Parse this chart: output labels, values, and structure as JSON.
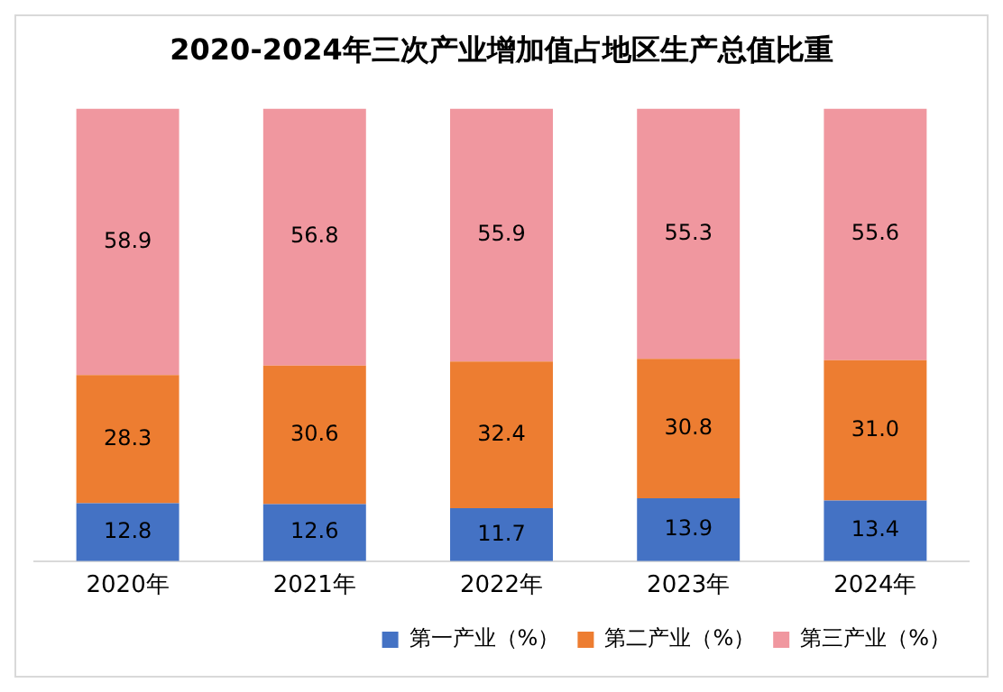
{
  "chart_data": {
    "type": "bar",
    "title": "2020-2024年三次产业增加值占地区生产总值比重",
    "categories": [
      "2020年",
      "2021年",
      "2022年",
      "2023年",
      "2024年"
    ],
    "stacked": true,
    "legend": "bottom",
    "grid": false,
    "series": [
      {
        "name": "第一产业（%）",
        "color": "#4472c4",
        "values": [
          12.8,
          12.6,
          11.7,
          13.9,
          13.4
        ],
        "value_labels": [
          "12.8",
          "12.6",
          "11.7",
          "13.9",
          "13.4"
        ]
      },
      {
        "name": "第二产业（%）",
        "color": "#ed7d31",
        "values": [
          28.3,
          30.6,
          32.4,
          30.8,
          31.0
        ],
        "value_labels": [
          "28.3",
          "30.6",
          "32.4",
          "30.8",
          "31.0"
        ]
      },
      {
        "name": "第三产业（%）",
        "color": "#f0979f",
        "values": [
          58.9,
          56.8,
          55.9,
          55.3,
          55.6
        ],
        "value_labels": [
          "58.9",
          "56.8",
          "55.9",
          "55.3",
          "55.6"
        ]
      }
    ]
  }
}
